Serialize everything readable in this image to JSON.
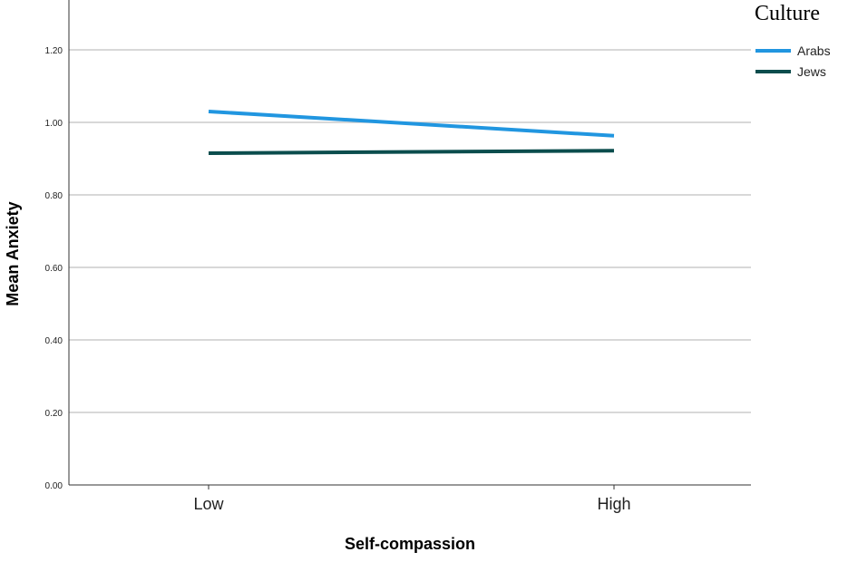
{
  "chart_data": {
    "type": "line",
    "xlabel": "Self-compassion",
    "ylabel": "Mean Anxiety",
    "categories": [
      "Low",
      "High"
    ],
    "ylim": [
      0,
      1.3
    ],
    "yticks": [
      "0.00",
      "0.20",
      "0.40",
      "0.60",
      "0.80",
      "1.00",
      "1.20"
    ],
    "grid": true,
    "legend": {
      "title": "Culture",
      "placement": "top-right, outside plot"
    },
    "series": [
      {
        "name": "Arabs",
        "values": [
          1.03,
          0.963
        ],
        "color": "#2196e0"
      },
      {
        "name": "Jews",
        "values": [
          0.915,
          0.922
        ],
        "color": "#0b4d4d"
      }
    ]
  }
}
